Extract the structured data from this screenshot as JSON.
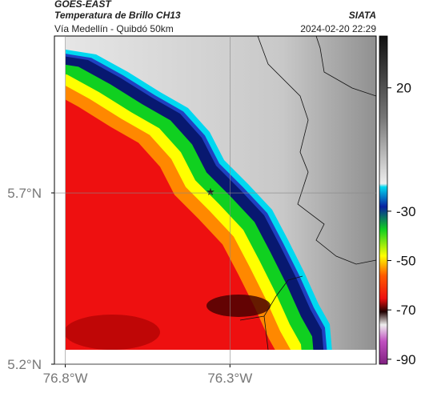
{
  "header": {
    "title": "GOES-EAST",
    "subtitle": "Temperatura de Brillo CH13",
    "right_title": "SIATA",
    "caption": "Vía Medellín - Quibdó 50km",
    "timestamp": "2024-02-20 22:29"
  },
  "map": {
    "xlim": [
      -76.833,
      -75.856
    ],
    "ylim": [
      5.2,
      6.158
    ],
    "xticks": [
      {
        "value": -76.8,
        "label": "76.8°W"
      },
      {
        "value": -76.3,
        "label": "76.3°W"
      }
    ],
    "yticks": [
      {
        "value": 5.7,
        "label": "5.7°N"
      },
      {
        "value": 5.2,
        "label": "5.2°N"
      }
    ],
    "grid": true
  },
  "colorbar": {
    "lim": [
      -92,
      41
    ],
    "ticks": [
      20,
      -30,
      -50,
      -70,
      -90
    ]
  }
}
